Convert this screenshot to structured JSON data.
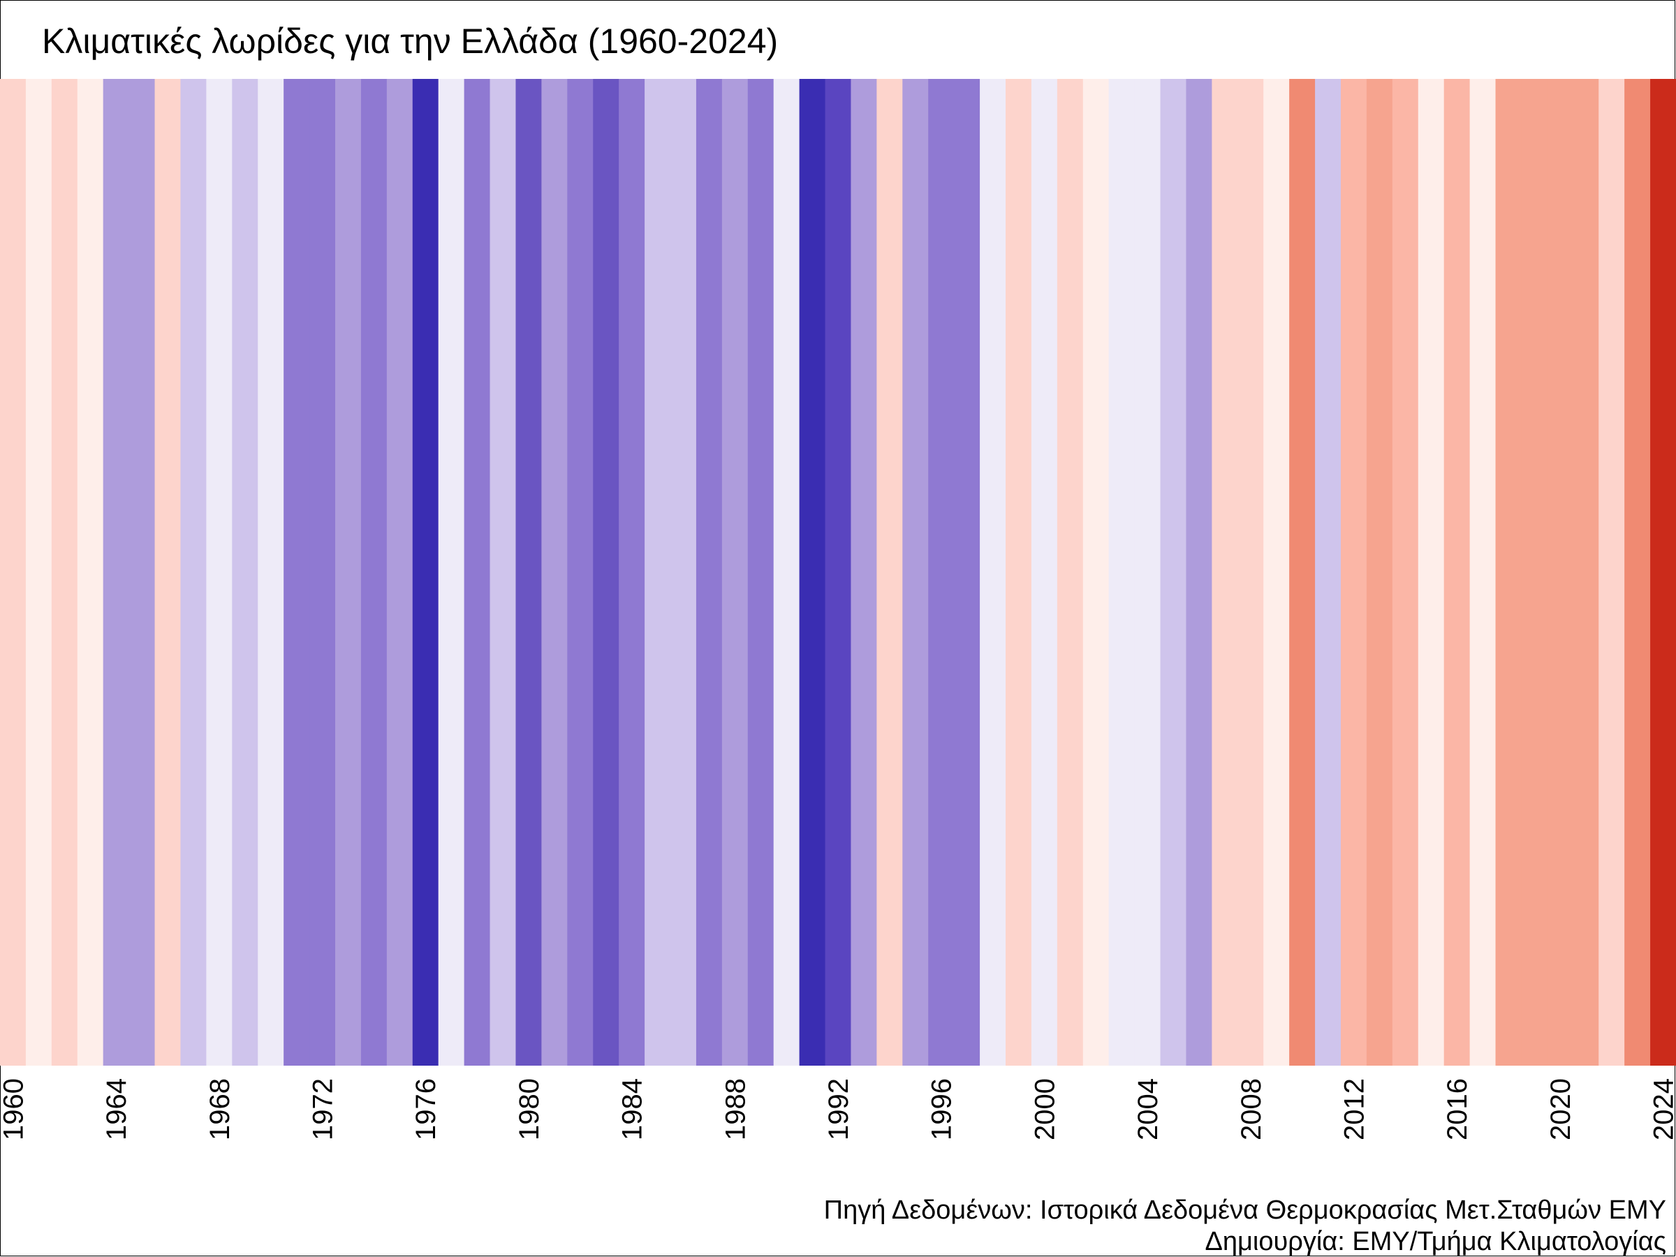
{
  "chart_data": {
    "type": "heatmap",
    "title": "Κλιματικές λωρίδες για την Ελλάδα (1960-2024)",
    "xlabel": "",
    "ylabel": "",
    "x_range": [
      1960,
      2024
    ],
    "tick_labels": [
      "1960",
      "1964",
      "1968",
      "1972",
      "1976",
      "1980",
      "1984",
      "1988",
      "1992",
      "1996",
      "2000",
      "2004",
      "2008",
      "2012",
      "2016",
      "2020",
      "2024"
    ],
    "grid": false,
    "legend": "none",
    "years": [
      1960,
      1961,
      1962,
      1963,
      1964,
      1965,
      1966,
      1967,
      1968,
      1969,
      1970,
      1971,
      1972,
      1973,
      1974,
      1975,
      1976,
      1977,
      1978,
      1979,
      1980,
      1981,
      1982,
      1983,
      1984,
      1985,
      1986,
      1987,
      1988,
      1989,
      1990,
      1991,
      1992,
      1993,
      1994,
      1995,
      1996,
      1997,
      1998,
      1999,
      2000,
      2001,
      2002,
      2003,
      2004,
      2005,
      2006,
      2007,
      2008,
      2009,
      2010,
      2011,
      2012,
      2013,
      2014,
      2015,
      2016,
      2017,
      2018,
      2019,
      2020,
      2021,
      2022,
      2023,
      2024
    ],
    "colors": [
      "#fdd4cc",
      "#feeeea",
      "#fdd4cc",
      "#feeeea",
      "#ae9cdc",
      "#ae9cdc",
      "#fdd4cc",
      "#cfc4ec",
      "#eeebf8",
      "#cfc4ec",
      "#eeebf8",
      "#8f79d2",
      "#8f79d2",
      "#ae9cdc",
      "#8f79d2",
      "#ae9cdc",
      "#3a2db2",
      "#eeebf8",
      "#8f79d2",
      "#cfc4ec",
      "#6a55c2",
      "#ae9cdc",
      "#8f79d2",
      "#6a55c2",
      "#8f79d2",
      "#cfc4ec",
      "#cfc4ec",
      "#8f79d2",
      "#ae9cdc",
      "#8f79d2",
      "#eeebf8",
      "#3a2db2",
      "#5a45c0",
      "#ae9cdc",
      "#fdd4cc",
      "#ae9cdc",
      "#8f79d2",
      "#8f79d2",
      "#eeebf8",
      "#fdd4cc",
      "#eeebf8",
      "#fdd4cc",
      "#feeeea",
      "#eeebf8",
      "#eeebf8",
      "#cfc4ec",
      "#ae9cdc",
      "#fdd4cc",
      "#fdd4cc",
      "#feeeea",
      "#f08a72",
      "#cfc4ec",
      "#fbb6a6",
      "#f6a48f",
      "#fbb6a6",
      "#feeeea",
      "#fbb6a6",
      "#feeeea",
      "#f6a48f",
      "#f6a48f",
      "#f6a48f",
      "#f6a48f",
      "#fdd4cc",
      "#f08a72",
      "#cb2b1b"
    ]
  },
  "captions": {
    "source": "Πηγή Δεδομένων: Ιστορικά Δεδομένα Θερμοκρασίας Μετ.Σταθμών ΕΜΥ",
    "credit": "Δημιουργία: ΕΜΥ/Τμήμα Κλιματολογίας"
  }
}
